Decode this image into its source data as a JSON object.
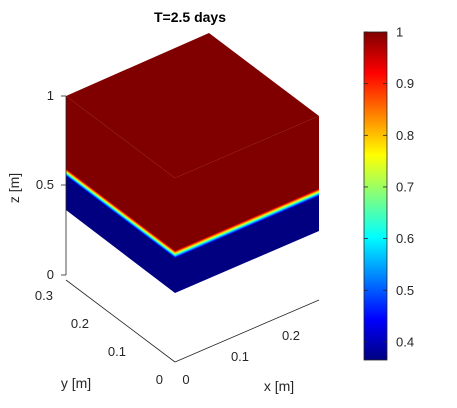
{
  "chart_data": {
    "type": "heatmap",
    "title": "T=2.5 days",
    "xlabel": "x [m]",
    "ylabel": "y [m]",
    "zlabel": "z [m]",
    "xlim": [
      0,
      0.3
    ],
    "ylim": [
      0,
      0.3
    ],
    "zlim": [
      0,
      1
    ],
    "xticks": [
      "0",
      "0.1",
      "0.2"
    ],
    "yticks": [
      "0",
      "0.1",
      "0.2",
      "0.3"
    ],
    "zticks": [
      "0",
      "0.5",
      "1"
    ],
    "colorbar": {
      "colormap": "jet",
      "range": [
        0.365,
        1.0
      ],
      "ticks": [
        "0.4",
        "0.5",
        "0.6",
        "0.7",
        "0.8",
        "0.9",
        "1"
      ]
    },
    "field": {
      "top_face_value": 1.0,
      "low_value": 0.365,
      "high_value": 1.0,
      "front_interface_z": [
        0.3,
        0.37
      ]
    }
  }
}
